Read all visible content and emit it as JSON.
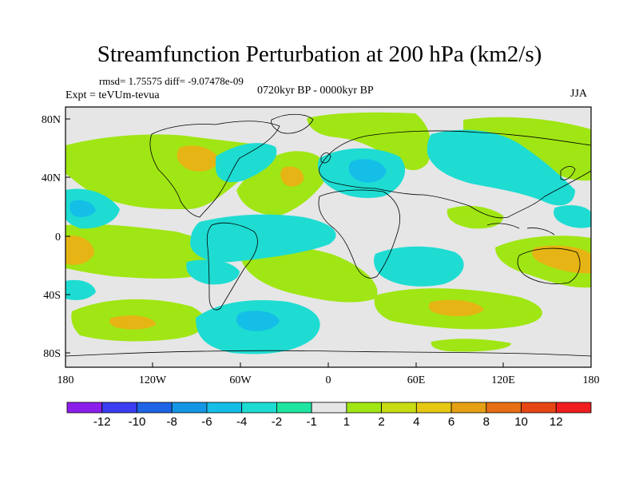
{
  "map": {
    "title": "Streamfunction Perturbation at 200 hPa (km2/s)",
    "subtitle": "rmsd= 1.75575 diff= -9.07478e-09",
    "left_string": "Expt = teVUm-tevua",
    "center_string": "0720kyr BP - 0000kyr BP",
    "right_string": "JJA"
  },
  "axes": {
    "lat_ticks": [
      "80N",
      "40N",
      "0",
      "40S",
      "80S"
    ],
    "lon_ticks": [
      "180",
      "120W",
      "60W",
      "0",
      "60E",
      "120E",
      "180"
    ]
  },
  "colorbar": {
    "labels": [
      "-12",
      "-10",
      "-8",
      "-6",
      "-4",
      "-2",
      "-1",
      "1",
      "2",
      "4",
      "6",
      "8",
      "10",
      "12"
    ],
    "colors": [
      "#8c1eec",
      "#3c3cf0",
      "#1e64e6",
      "#1496e6",
      "#14bee6",
      "#1edcd2",
      "#1ee6a0",
      "#e6e6e6",
      "#a0e614",
      "#c8dc14",
      "#e6c814",
      "#e6a014",
      "#e66e14",
      "#e64614",
      "#f01e1e"
    ]
  },
  "field_colors": {
    "neutral": "#e6e6e6",
    "pos_light": "#a0e614",
    "pos_mid": "#c8dc14",
    "pos_strong": "#e6b414",
    "neg_light": "#1ee6a0",
    "neg_mid": "#1edcd2",
    "neg_strong": "#14bee6"
  }
}
